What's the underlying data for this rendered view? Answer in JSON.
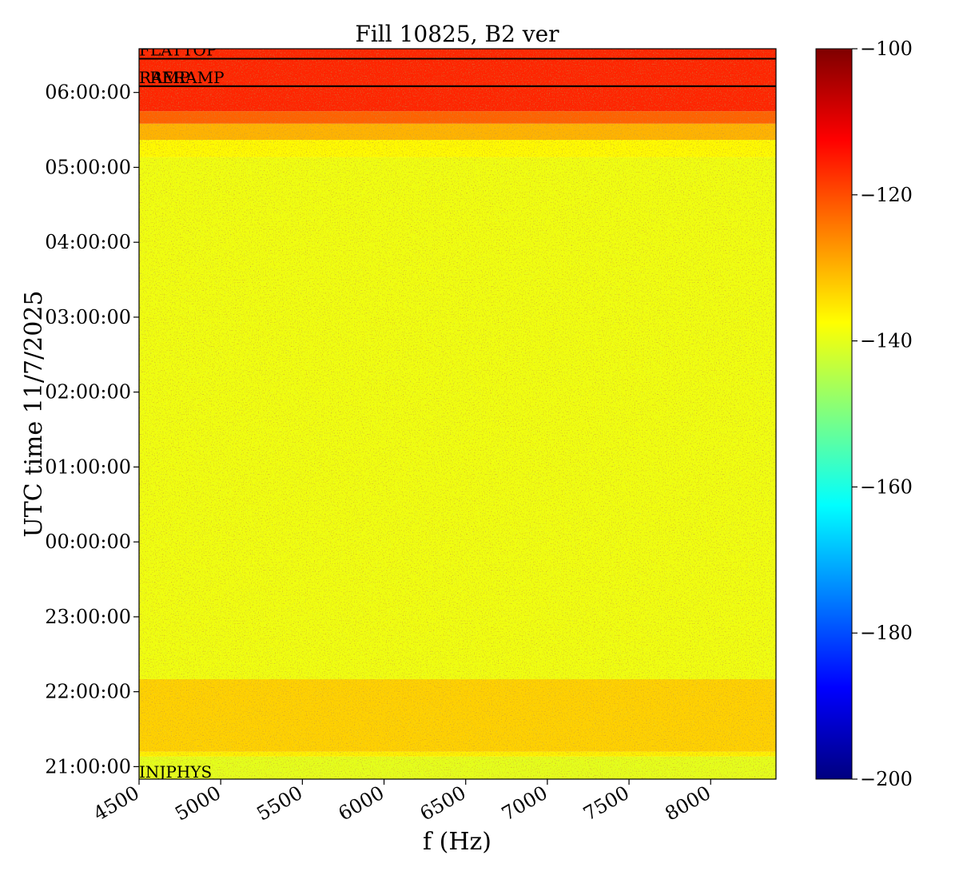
{
  "chart_data": {
    "type": "heatmap",
    "title": "Fill 10825, B2 ver",
    "xlabel": "f (Hz)",
    "ylabel": "UTC time 11/7/2025",
    "xlim": [
      4500,
      8400
    ],
    "x_ticks": [
      4500,
      5000,
      5500,
      6000,
      6500,
      7000,
      7500,
      8000
    ],
    "y_range": [
      "20:50:00",
      "06:35:00"
    ],
    "y_ticks": [
      "21:00:00",
      "22:00:00",
      "23:00:00",
      "00:00:00",
      "01:00:00",
      "02:00:00",
      "03:00:00",
      "04:00:00",
      "05:00:00",
      "06:00:00"
    ],
    "colorbar": {
      "colormap": "jet",
      "range": [
        -200,
        -100
      ],
      "ticks": [
        -100,
        -120,
        -140,
        -160,
        -180,
        -200
      ]
    },
    "mode_markers": [
      {
        "label": "INJPHYS",
        "time": "20:50:00"
      },
      {
        "label": "PRERAMP",
        "time": "06:05:00"
      },
      {
        "label": "RAMP",
        "time": "06:05:00"
      },
      {
        "label": "FLATTOP",
        "time": "06:27:00"
      }
    ],
    "level_bands": [
      {
        "from": "20:50:00",
        "to": "21:08:00",
        "level_db": -140
      },
      {
        "from": "21:08:00",
        "to": "21:12:00",
        "level_db": -136
      },
      {
        "from": "21:12:00",
        "to": "22:10:00",
        "level_db": -133
      },
      {
        "from": "22:10:00",
        "to": "05:08:00",
        "level_db": -139
      },
      {
        "from": "05:08:00",
        "to": "05:22:00",
        "level_db": -137
      },
      {
        "from": "05:22:00",
        "to": "05:35:00",
        "level_db": -130
      },
      {
        "from": "05:35:00",
        "to": "05:45:00",
        "level_db": -122
      },
      {
        "from": "05:45:00",
        "to": "06:35:00",
        "level_db": -116
      }
    ]
  }
}
